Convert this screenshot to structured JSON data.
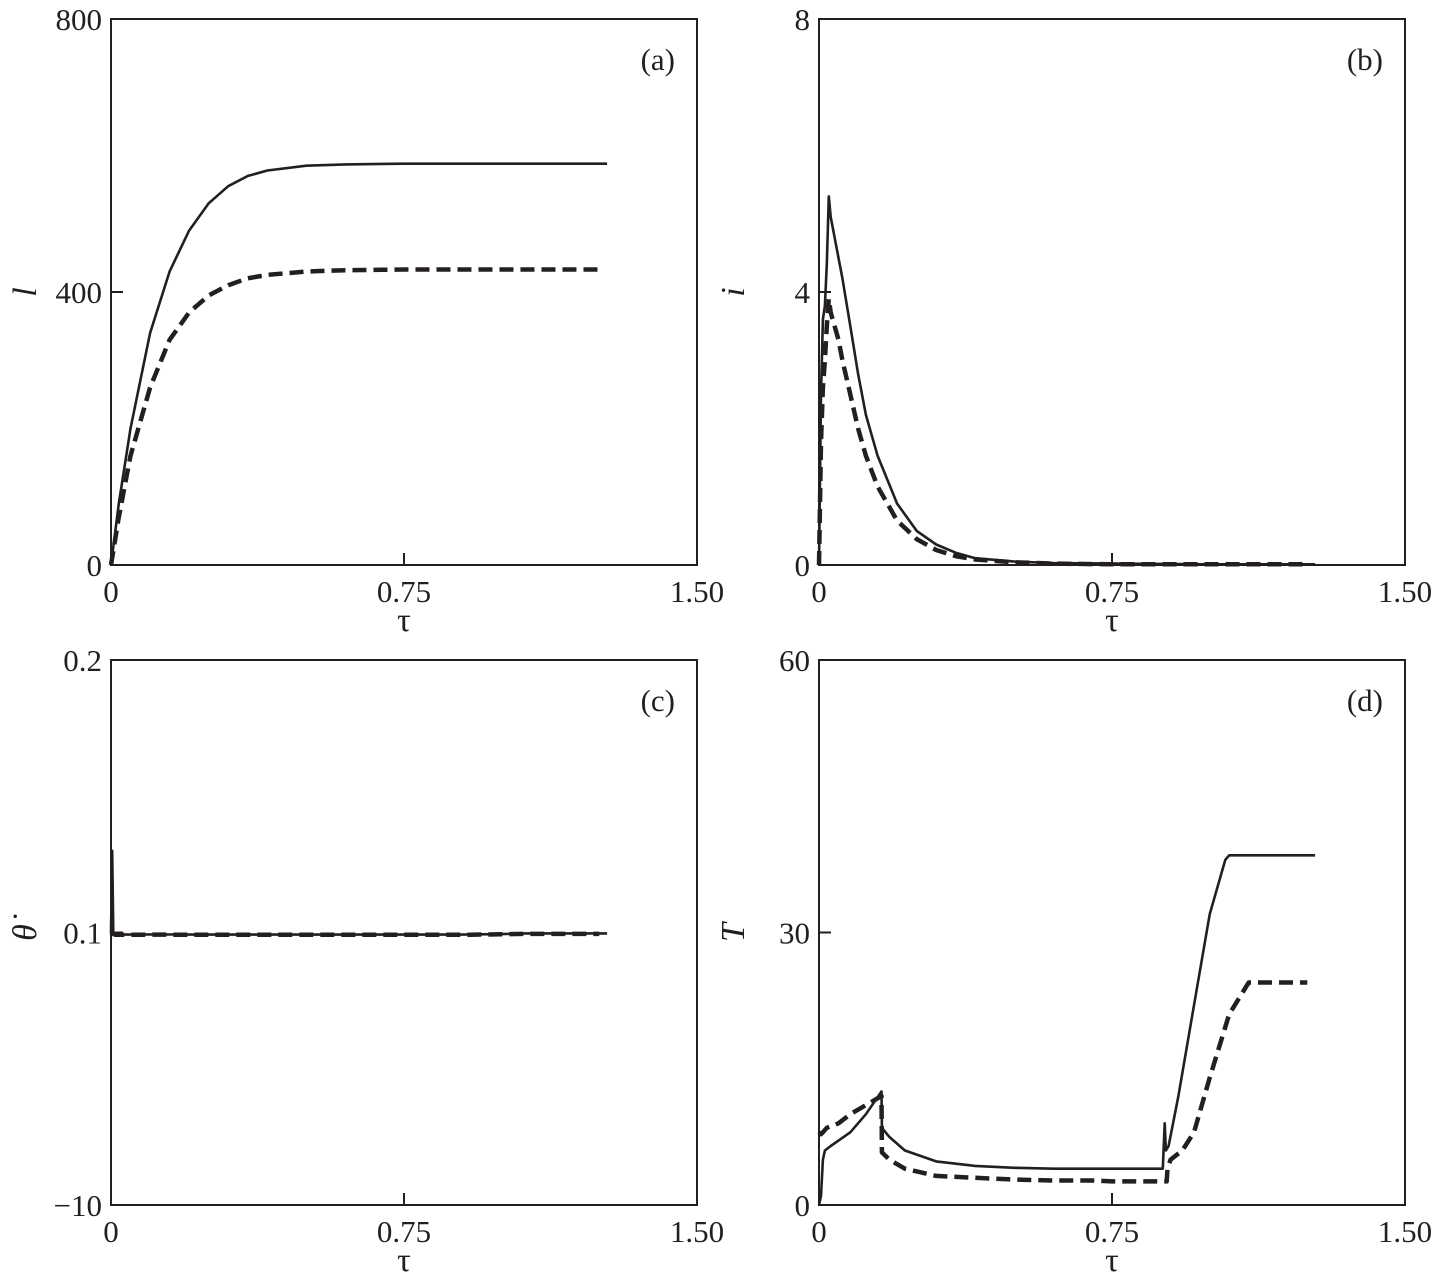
{
  "chart_data": [
    {
      "type": "line",
      "panel_label": "(a)",
      "xlabel": "τ",
      "ylabel": "l",
      "xlim": [
        0,
        1.5
      ],
      "ylim": [
        0,
        800
      ],
      "x_ticks": [
        0,
        0.75,
        1.5
      ],
      "x_tick_labels": [
        "0",
        "0.75",
        "1.50"
      ],
      "y_ticks": [
        0,
        400,
        800
      ],
      "y_tick_labels": [
        "0",
        "400",
        "800"
      ],
      "grid": false,
      "series": [
        {
          "style": "solid",
          "x": [
            0,
            0.02,
            0.05,
            0.1,
            0.15,
            0.2,
            0.25,
            0.3,
            0.35,
            0.4,
            0.5,
            0.6,
            0.75,
            1.0,
            1.27
          ],
          "y": [
            0,
            90,
            200,
            340,
            430,
            490,
            530,
            555,
            570,
            578,
            585,
            587,
            588,
            588,
            588
          ]
        },
        {
          "style": "dashed",
          "x": [
            0,
            0.02,
            0.05,
            0.1,
            0.15,
            0.2,
            0.25,
            0.3,
            0.35,
            0.4,
            0.5,
            0.6,
            0.75,
            1.0,
            1.25
          ],
          "y": [
            0,
            70,
            160,
            260,
            330,
            370,
            395,
            410,
            420,
            425,
            430,
            432,
            433,
            433,
            433
          ]
        }
      ]
    },
    {
      "type": "line",
      "panel_label": "(b)",
      "xlabel": "τ",
      "ylabel": "i",
      "xlim": [
        0,
        1.5
      ],
      "ylim": [
        0,
        8
      ],
      "x_ticks": [
        0,
        0.75,
        1.5
      ],
      "x_tick_labels": [
        "0",
        "0.75",
        "1.50"
      ],
      "y_ticks": [
        0,
        4,
        8
      ],
      "y_tick_labels": [
        "0",
        "4",
        "8"
      ],
      "grid": false,
      "series": [
        {
          "style": "solid",
          "x": [
            0,
            0.005,
            0.01,
            0.015,
            0.02,
            0.025,
            0.03,
            0.04,
            0.05,
            0.06,
            0.08,
            0.1,
            0.12,
            0.15,
            0.2,
            0.25,
            0.3,
            0.35,
            0.4,
            0.5,
            0.6,
            0.75,
            1.0,
            1.27
          ],
          "y": [
            0,
            2.5,
            3.6,
            3.8,
            4.4,
            5.4,
            5.1,
            4.8,
            4.5,
            4.2,
            3.5,
            2.8,
            2.2,
            1.6,
            0.9,
            0.5,
            0.3,
            0.18,
            0.1,
            0.05,
            0.03,
            0.02,
            0.01,
            0.01
          ]
        },
        {
          "style": "dashed",
          "x": [
            0,
            0.005,
            0.01,
            0.015,
            0.02,
            0.025,
            0.03,
            0.04,
            0.05,
            0.06,
            0.08,
            0.1,
            0.12,
            0.15,
            0.2,
            0.25,
            0.3,
            0.35,
            0.4,
            0.5,
            0.6,
            0.75,
            1.0,
            1.25
          ],
          "y": [
            0,
            1.8,
            2.6,
            3.0,
            3.5,
            3.9,
            3.7,
            3.5,
            3.3,
            3.0,
            2.5,
            2.0,
            1.6,
            1.15,
            0.65,
            0.38,
            0.22,
            0.13,
            0.08,
            0.04,
            0.02,
            0.01,
            0.01,
            0.01
          ]
        }
      ]
    },
    {
      "type": "line",
      "panel_label": "(c)",
      "xlabel": "τ",
      "ylabel": "θ̇",
      "xlim": [
        0,
        1.5
      ],
      "ylim": [
        -10,
        0.2
      ],
      "x_ticks": [
        0,
        0.75,
        1.5
      ],
      "x_tick_labels": [
        "0",
        "0.75",
        "1.50"
      ],
      "y_ticks": [
        -10,
        0.1,
        0.2
      ],
      "y_tick_labels": [
        "−10",
        "0.1",
        "0.2"
      ],
      "grid": false,
      "series": [
        {
          "style": "solid",
          "x": [
            0,
            0.003,
            0.006,
            0.009,
            0.013,
            0.02,
            0.04,
            0.08,
            0.12,
            0.16,
            0.2,
            0.25,
            0.3,
            0.4,
            0.5,
            0.6,
            0.75,
            0.88,
            0.9,
            1.0,
            1.06,
            1.1,
            1.2,
            1.27
          ],
          "y": [
            0.05,
            0.13,
            0.08,
            0.04,
            0.02,
            0.021,
            0.022,
            0.026,
            0.03,
            0.0245,
            0.0225,
            0.0218,
            0.0215,
            0.0212,
            0.0211,
            0.021,
            0.021,
            0.021,
            0.0225,
            0.04,
            0.068,
            0.068,
            0.068,
            0.068
          ]
        },
        {
          "style": "dashed",
          "x": [
            0,
            0.003,
            0.006,
            0.009,
            0.013,
            0.02,
            0.04,
            0.08,
            0.12,
            0.16,
            0.2,
            0.25,
            0.3,
            0.4,
            0.5,
            0.6,
            0.75,
            0.88,
            0.92,
            1.0,
            1.06,
            1.1,
            1.2,
            1.25
          ],
          "y": [
            0.04,
            0.075,
            0.05,
            0.025,
            0.016,
            0.0155,
            0.016,
            0.0185,
            0.0215,
            0.0188,
            0.0168,
            0.0162,
            0.016,
            0.0159,
            0.0158,
            0.0158,
            0.0158,
            0.0158,
            0.018,
            0.034,
            0.0465,
            0.0475,
            0.0475,
            0.0475
          ]
        }
      ]
    },
    {
      "type": "line",
      "panel_label": "(d)",
      "xlabel": "τ",
      "ylabel": "T",
      "xlim": [
        0,
        1.5
      ],
      "ylim": [
        0,
        60
      ],
      "x_ticks": [
        0,
        0.75,
        1.5
      ],
      "x_tick_labels": [
        "0",
        "0.75",
        "1.50"
      ],
      "y_ticks": [
        0,
        30,
        60
      ],
      "y_tick_labels": [
        "0",
        "30",
        "60"
      ],
      "grid": false,
      "series": [
        {
          "style": "solid",
          "x": [
            0,
            0.005,
            0.01,
            0.015,
            0.03,
            0.08,
            0.12,
            0.16,
            0.161,
            0.18,
            0.22,
            0.3,
            0.4,
            0.5,
            0.6,
            0.7,
            0.75,
            0.88,
            0.885,
            0.888,
            0.895,
            0.92,
            0.96,
            1.0,
            1.04,
            1.05,
            1.1,
            1.2,
            1.27
          ],
          "y": [
            0,
            1,
            5,
            6,
            6.5,
            8,
            10,
            12.5,
            8.5,
            7.5,
            6,
            4.8,
            4.3,
            4.1,
            4,
            4,
            4,
            4,
            9,
            6,
            6.5,
            12,
            22,
            32,
            38,
            38.5,
            38.5,
            38.5,
            38.5
          ]
        },
        {
          "style": "dashed",
          "x": [
            0,
            0.005,
            0.01,
            0.02,
            0.05,
            0.08,
            0.12,
            0.16,
            0.161,
            0.18,
            0.22,
            0.3,
            0.4,
            0.5,
            0.6,
            0.7,
            0.75,
            0.89,
            0.892,
            0.9,
            0.93,
            0.96,
            1.0,
            1.05,
            1.1,
            1.2,
            1.25
          ],
          "y": [
            8,
            7.8,
            8,
            8.5,
            9,
            10,
            11,
            12,
            5.8,
            5,
            4,
            3.2,
            3,
            2.8,
            2.7,
            2.7,
            2.6,
            2.6,
            4,
            5,
            6,
            8,
            14,
            21,
            24.5,
            24.5,
            24.5
          ]
        }
      ]
    }
  ]
}
